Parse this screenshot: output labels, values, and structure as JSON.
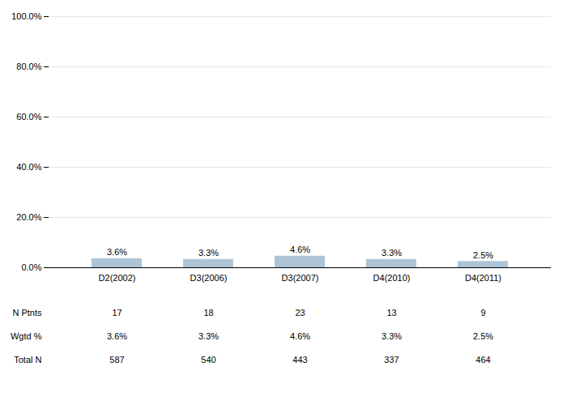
{
  "chart_data": {
    "type": "bar",
    "categories": [
      "D2(2002)",
      "D3(2006)",
      "D3(2007)",
      "D4(2010)",
      "D4(2011)"
    ],
    "values": [
      3.6,
      3.3,
      4.6,
      3.3,
      2.5
    ],
    "value_labels": [
      "3.6%",
      "3.3%",
      "4.6%",
      "3.3%",
      "2.5%"
    ],
    "data_labels": true,
    "color": "#adc4d6",
    "ylim": [
      0,
      100
    ],
    "yticks": [
      {
        "value": 0,
        "label": "0.0%"
      },
      {
        "value": 20,
        "label": "20.0%"
      },
      {
        "value": 40,
        "label": "40.0%"
      },
      {
        "value": 60,
        "label": "60.0%"
      },
      {
        "value": 80,
        "label": "80.0%"
      },
      {
        "value": 100,
        "label": "100.0%"
      }
    ],
    "grid": true,
    "table": [
      {
        "label": "N Ptnts",
        "values": [
          17,
          18,
          23,
          13,
          9
        ]
      },
      {
        "label": "Wgtd %",
        "values": [
          3.6,
          3.3,
          4.6,
          3.3,
          2.5
        ],
        "value_labels": [
          "3.6%",
          "3.3%",
          "4.6%",
          "3.3%",
          "2.5%"
        ]
      },
      {
        "label": "Total N",
        "values": [
          587,
          540,
          443,
          337,
          464
        ]
      }
    ]
  }
}
